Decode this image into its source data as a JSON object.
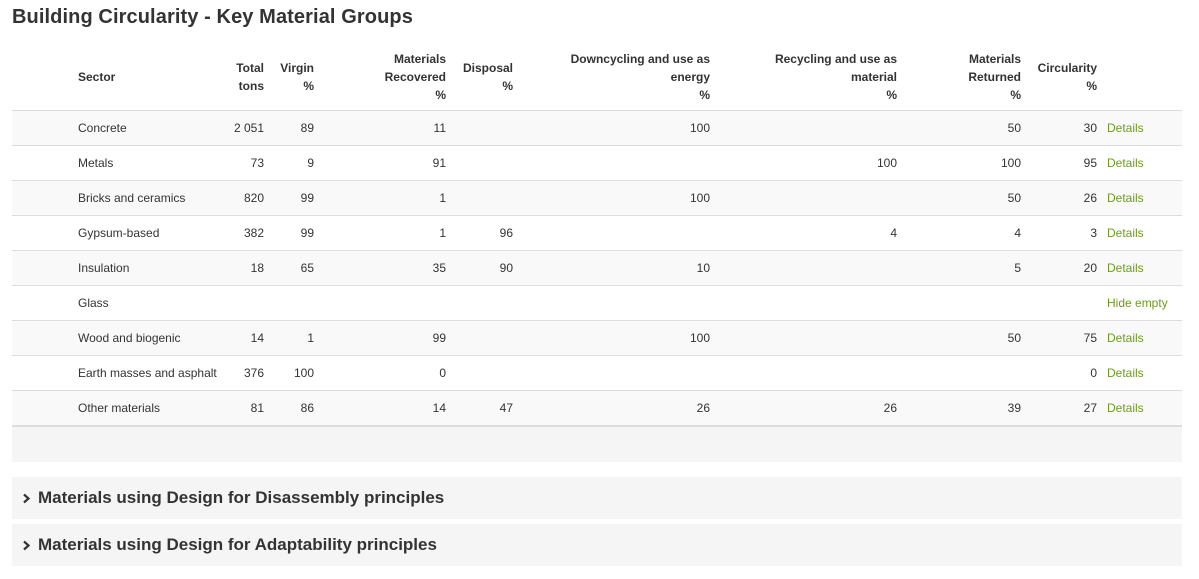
{
  "page_title": "Building Circularity - Key Material Groups",
  "table": {
    "headers": {
      "sector": "Sector",
      "total": [
        "Total",
        "tons"
      ],
      "virgin": [
        "Virgin",
        "%"
      ],
      "recovered": [
        "Materials",
        "Recovered",
        "%"
      ],
      "disposal": [
        "Disposal",
        "%"
      ],
      "downcycling": [
        "Downcycling and use as",
        "energy",
        "%"
      ],
      "recycling": [
        "Recycling and use as",
        "material",
        "%"
      ],
      "returned": [
        "Materials",
        "Returned",
        "%"
      ],
      "circularity": [
        "Circularity",
        "%"
      ]
    },
    "rows": [
      {
        "sector": "Concrete",
        "total": "2 051",
        "virgin": "89",
        "recovered": "11",
        "disposal": "",
        "downcycling": "100",
        "recycling": "",
        "returned": "50",
        "circularity": "30",
        "action": "Details"
      },
      {
        "sector": "Metals",
        "total": "73",
        "virgin": "9",
        "recovered": "91",
        "disposal": "",
        "downcycling": "",
        "recycling": "100",
        "returned": "100",
        "circularity": "95",
        "action": "Details"
      },
      {
        "sector": "Bricks and ceramics",
        "total": "820",
        "virgin": "99",
        "recovered": "1",
        "disposal": "",
        "downcycling": "100",
        "recycling": "",
        "returned": "50",
        "circularity": "26",
        "action": "Details"
      },
      {
        "sector": "Gypsum-based",
        "total": "382",
        "virgin": "99",
        "recovered": "1",
        "disposal": "96",
        "downcycling": "",
        "recycling": "4",
        "returned": "4",
        "circularity": "3",
        "action": "Details"
      },
      {
        "sector": "Insulation",
        "total": "18",
        "virgin": "65",
        "recovered": "35",
        "disposal": "90",
        "downcycling": "10",
        "recycling": "",
        "returned": "5",
        "circularity": "20",
        "action": "Details"
      },
      {
        "sector": "Glass",
        "total": "",
        "virgin": "",
        "recovered": "",
        "disposal": "",
        "downcycling": "",
        "recycling": "",
        "returned": "",
        "circularity": "",
        "action": "Hide empty"
      },
      {
        "sector": "Wood and biogenic",
        "total": "14",
        "virgin": "1",
        "recovered": "99",
        "disposal": "",
        "downcycling": "100",
        "recycling": "",
        "returned": "50",
        "circularity": "75",
        "action": "Details"
      },
      {
        "sector": "Earth masses and asphalt",
        "total": "376",
        "virgin": "100",
        "recovered": "0",
        "disposal": "",
        "downcycling": "",
        "recycling": "",
        "returned": "",
        "circularity": "0",
        "action": "Details"
      },
      {
        "sector": "Other materials",
        "total": "81",
        "virgin": "86",
        "recovered": "14",
        "disposal": "47",
        "downcycling": "26",
        "recycling": "26",
        "returned": "39",
        "circularity": "27",
        "action": "Details"
      }
    ]
  },
  "panels": [
    {
      "title": "Materials using Design for Disassembly principles",
      "icon": "chevron-right-icon"
    },
    {
      "title": "Materials using Design for Adaptability principles",
      "icon": "chevron-right-icon"
    }
  ],
  "colors": {
    "link": "#6d9a1f",
    "stripe": "#f9f9f9",
    "panel_bg": "#f5f5f5"
  }
}
